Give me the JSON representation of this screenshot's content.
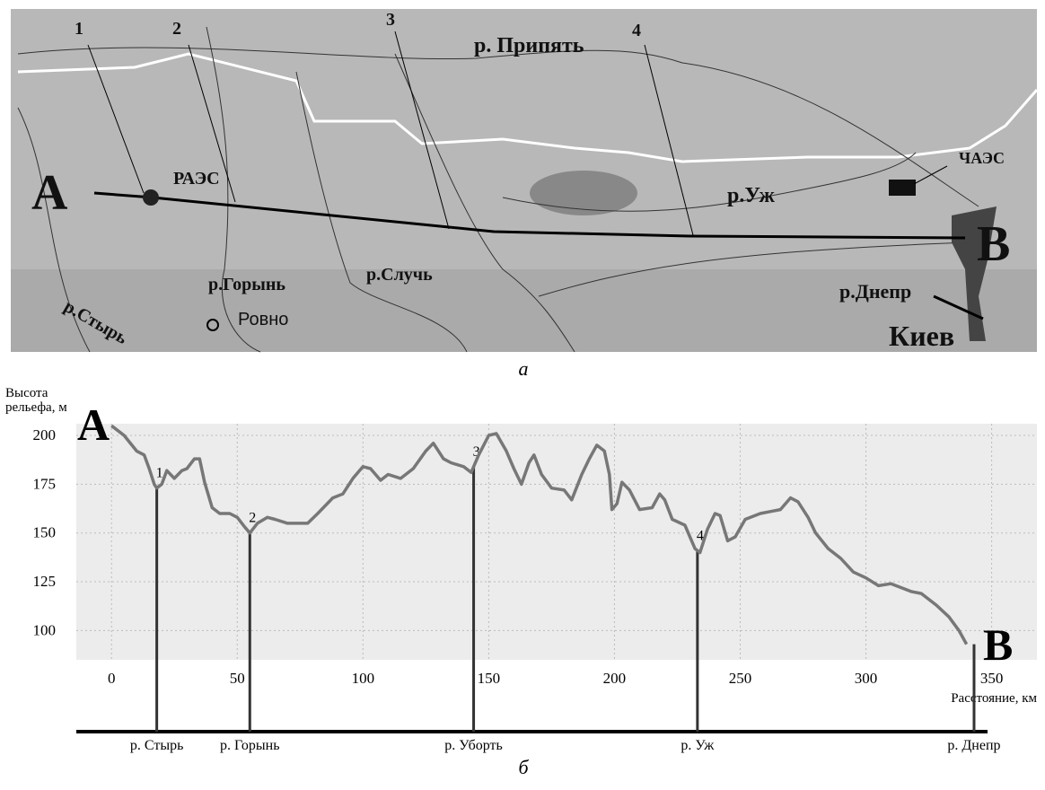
{
  "map": {
    "caption": "а",
    "labels": {
      "n1": "1",
      "n2": "2",
      "n3": "3",
      "n4": "4",
      "pripyat": "р. Припять",
      "raes": "РАЭС",
      "chaes": "ЧАЭС",
      "uzh": "р.Уж",
      "a": "A",
      "b": "B",
      "goryn": "р.Горынь",
      "sluch": "р.Случь",
      "rovno": "Ровно",
      "styr": "р.Стырь",
      "dnepr": "р.Днепр",
      "kiev": "Киев"
    }
  },
  "chart_data": {
    "type": "line",
    "caption": "б",
    "ylabel": [
      "Высота",
      "рельефа, м"
    ],
    "xlabel": "Расстояние, км",
    "start_label": "A",
    "end_label": "B",
    "x": [
      0,
      5,
      10,
      13,
      15,
      17,
      18,
      20,
      22,
      25,
      28,
      30,
      33,
      35,
      37,
      40,
      43,
      47,
      50,
      53,
      55,
      58,
      62,
      65,
      70,
      78,
      82,
      88,
      92,
      96,
      100,
      103,
      107,
      110,
      115,
      120,
      125,
      128,
      132,
      135,
      140,
      143,
      146,
      150,
      153,
      157,
      160,
      163,
      166,
      168,
      171,
      175,
      180,
      183,
      187,
      190,
      193,
      196,
      198,
      199,
      201,
      203,
      206,
      210,
      215,
      218,
      220,
      223,
      228,
      232,
      234,
      237,
      240,
      242,
      245,
      248,
      252,
      258,
      262,
      266,
      270,
      273,
      277,
      280,
      285,
      290,
      295,
      300,
      305,
      310,
      318,
      322,
      328,
      333,
      337,
      340
    ],
    "values": [
      205,
      200,
      192,
      190,
      183,
      175,
      173,
      175,
      182,
      178,
      182,
      183,
      188,
      188,
      176,
      163,
      160,
      160,
      158,
      153,
      150,
      155,
      158,
      157,
      155,
      155,
      160,
      168,
      170,
      178,
      184,
      183,
      177,
      180,
      178,
      183,
      192,
      196,
      188,
      186,
      184,
      181,
      190,
      200,
      201,
      192,
      183,
      175,
      186,
      190,
      180,
      173,
      172,
      167,
      180,
      188,
      195,
      192,
      180,
      162,
      165,
      176,
      172,
      162,
      163,
      170,
      167,
      157,
      154,
      142,
      140,
      152,
      160,
      159,
      146,
      148,
      157,
      160,
      161,
      162,
      168,
      166,
      158,
      150,
      142,
      137,
      130,
      127,
      123,
      124,
      120,
      119,
      113,
      107,
      100,
      93
    ],
    "color": "#777777",
    "rivers": [
      {
        "name": "р. Стырь",
        "x": 18,
        "label": "1"
      },
      {
        "name": "р. Горынь",
        "x": 55,
        "label": "2"
      },
      {
        "name": "р. Уборть",
        "x": 144,
        "label": "3"
      },
      {
        "name": "р. Уж",
        "x": 233,
        "label": "4"
      },
      {
        "name": "р. Днепр",
        "x": 343
      }
    ],
    "xlim": [
      -14,
      368
    ],
    "ylim": [
      85,
      206
    ],
    "xticks": [
      0,
      50,
      100,
      150,
      200,
      250,
      300,
      350
    ],
    "yticks": [
      100,
      125,
      150,
      175,
      200
    ],
    "grid": true
  }
}
